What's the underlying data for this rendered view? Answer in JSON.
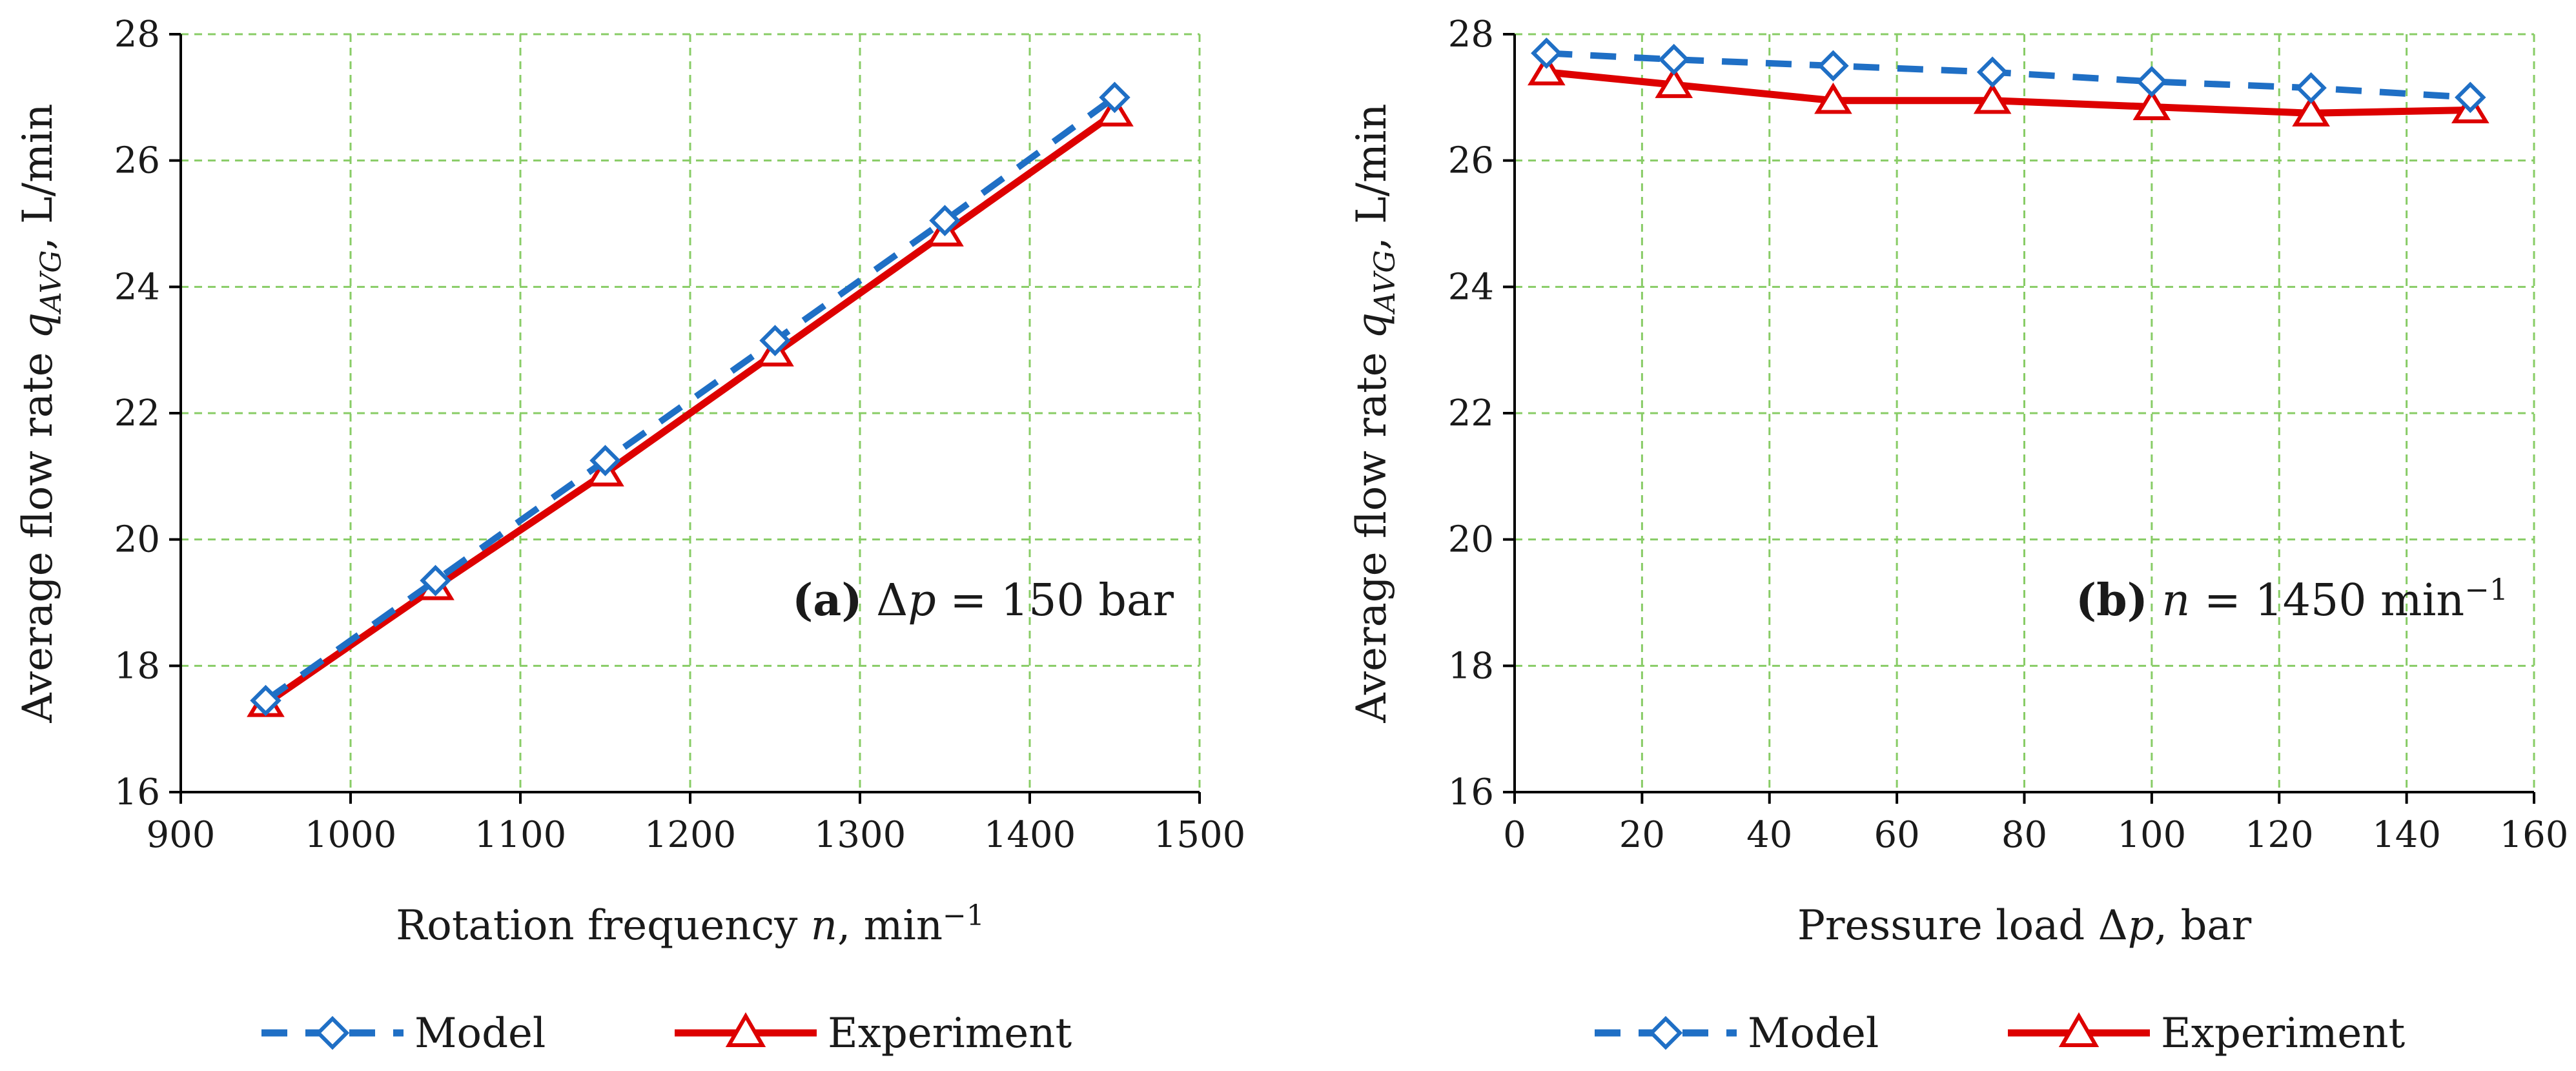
{
  "figure": {
    "legend": {
      "model_label": "Model",
      "experiment_label": "Experiment"
    }
  },
  "colors": {
    "model": "#1f6fc5",
    "experiment": "#dd0000",
    "grid": "#88cc66",
    "axis": "#000000"
  },
  "chart_data": [
    {
      "type": "line",
      "panel": "a",
      "panel_label_bold": "(a)",
      "panel_label_symbol": "Δp",
      "panel_label_rest": " = 150 bar",
      "xlabel_main": "Rotation frequency ",
      "xlabel_var": "n",
      "xlabel_unit": ", min",
      "xlabel_sup": "−1",
      "ylabel_main": "Average flow rate ",
      "ylabel_var": "q",
      "ylabel_sub": "AVG",
      "ylabel_unit": ", L/min",
      "xlim": [
        900,
        1500
      ],
      "ylim": [
        16,
        28
      ],
      "xticks": [
        900,
        1000,
        1100,
        1200,
        1300,
        1400,
        1500
      ],
      "yticks": [
        16,
        18,
        20,
        22,
        24,
        26,
        28
      ],
      "grid": true,
      "legend_position": "bottom",
      "series": [
        {
          "name": "Model",
          "marker": "diamond",
          "dash": "dashed",
          "x": [
            950,
            1050,
            1150,
            1250,
            1350,
            1450
          ],
          "y": [
            17.45,
            19.35,
            21.25,
            23.15,
            25.05,
            27.0
          ]
        },
        {
          "name": "Experiment",
          "marker": "triangle",
          "dash": "solid",
          "x": [
            950,
            1050,
            1150,
            1250,
            1350,
            1450
          ],
          "y": [
            17.4,
            19.25,
            21.05,
            22.95,
            24.85,
            26.75
          ]
        }
      ]
    },
    {
      "type": "line",
      "panel": "b",
      "panel_label_bold": "(b)",
      "panel_label_symbol": "n",
      "panel_label_rest": " = 1450 min",
      "panel_label_sup": "−1",
      "xlabel_main": "Pressure load Δ",
      "xlabel_var": "p",
      "xlabel_unit": ", bar",
      "ylabel_main": "Average flow rate ",
      "ylabel_var": "q",
      "ylabel_sub": "AVG",
      "ylabel_unit": ", L/min",
      "xlim": [
        0,
        160
      ],
      "ylim": [
        16,
        28
      ],
      "xticks": [
        0,
        20,
        40,
        60,
        80,
        100,
        120,
        140,
        160
      ],
      "yticks": [
        16,
        18,
        20,
        22,
        24,
        26,
        28
      ],
      "grid": true,
      "legend_position": "bottom",
      "series": [
        {
          "name": "Model",
          "marker": "diamond",
          "dash": "dashed",
          "x": [
            5,
            25,
            50,
            75,
            100,
            125,
            150
          ],
          "y": [
            27.7,
            27.6,
            27.5,
            27.4,
            27.25,
            27.15,
            27.0
          ]
        },
        {
          "name": "Experiment",
          "marker": "triangle",
          "dash": "solid",
          "x": [
            5,
            25,
            50,
            75,
            100,
            125,
            150
          ],
          "y": [
            27.4,
            27.2,
            26.95,
            26.95,
            26.85,
            26.75,
            26.8
          ]
        }
      ]
    }
  ]
}
